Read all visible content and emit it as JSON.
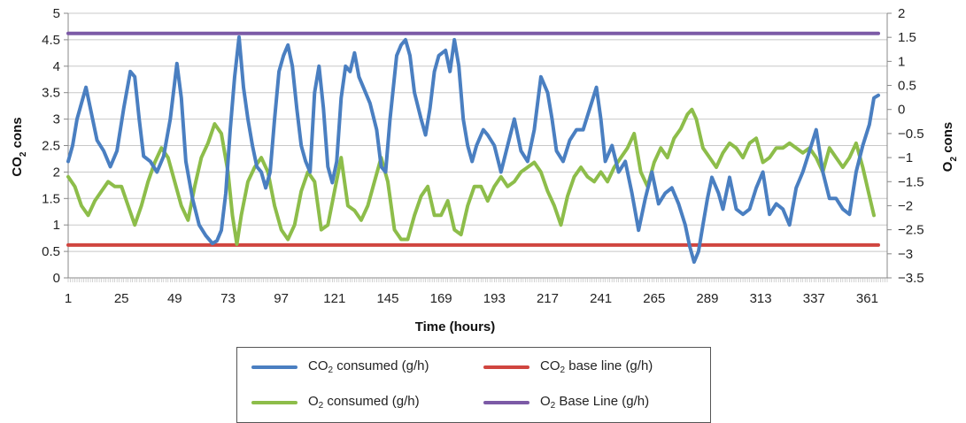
{
  "chart_data": {
    "type": "line",
    "xlabel": "Time (hours)",
    "ylabel_left": "CO2 cons",
    "ylabel_right": "O2 cons",
    "x_range": [
      1,
      370
    ],
    "x_ticks": [
      1,
      25,
      49,
      73,
      97,
      121,
      145,
      169,
      193,
      217,
      241,
      265,
      289,
      313,
      337,
      361
    ],
    "ylim_left": [
      0,
      5
    ],
    "y_ticks_left": [
      0,
      0.5,
      1,
      1.5,
      2,
      2.5,
      3,
      3.5,
      4,
      4.5,
      5
    ],
    "y_tick_labels_left": [
      "0",
      "0.5",
      "1",
      "1.5",
      "2",
      "2.5",
      "3",
      "3.5",
      "4",
      "4.5",
      "5"
    ],
    "ylim_right": [
      -3.5,
      2
    ],
    "y_ticks_right": [
      -3.5,
      -3,
      -2.5,
      -2,
      -1.5,
      -1,
      -0.5,
      0,
      0.5,
      1,
      1.5,
      2
    ],
    "y_tick_labels_right": [
      "−3.5",
      "−3",
      "−2.5",
      "−2",
      "−1.5",
      "−1",
      "−0.5",
      "0",
      "0.5",
      "1",
      "1.5",
      "2"
    ],
    "grid": true,
    "legend_position": "bottom",
    "series": [
      {
        "name": "CO2 consumed (g/h)",
        "label_main": "CO",
        "label_sub": "2",
        "label_rest": " consumed (g/h)",
        "axis": "left",
        "color": "#4a7fc1",
        "points": [
          [
            1,
            2.2
          ],
          [
            3,
            2.5
          ],
          [
            5,
            3.0
          ],
          [
            7,
            3.3
          ],
          [
            9,
            3.6
          ],
          [
            11,
            3.2
          ],
          [
            14,
            2.6
          ],
          [
            17,
            2.4
          ],
          [
            20,
            2.1
          ],
          [
            23,
            2.4
          ],
          [
            26,
            3.2
          ],
          [
            29,
            3.9
          ],
          [
            31,
            3.8
          ],
          [
            33,
            3.0
          ],
          [
            35,
            2.3
          ],
          [
            38,
            2.2
          ],
          [
            41,
            2.0
          ],
          [
            44,
            2.3
          ],
          [
            47,
            3.0
          ],
          [
            50,
            4.05
          ],
          [
            52,
            3.4
          ],
          [
            54,
            2.2
          ],
          [
            57,
            1.5
          ],
          [
            60,
            1.0
          ],
          [
            63,
            0.8
          ],
          [
            66,
            0.65
          ],
          [
            68,
            0.7
          ],
          [
            70,
            0.9
          ],
          [
            72,
            1.6
          ],
          [
            74,
            2.8
          ],
          [
            76,
            3.8
          ],
          [
            78,
            4.55
          ],
          [
            80,
            3.6
          ],
          [
            82,
            3.0
          ],
          [
            84,
            2.5
          ],
          [
            86,
            2.1
          ],
          [
            88,
            2.0
          ],
          [
            90,
            1.7
          ],
          [
            92,
            2.0
          ],
          [
            94,
            3.0
          ],
          [
            96,
            3.9
          ],
          [
            98,
            4.2
          ],
          [
            100,
            4.4
          ],
          [
            102,
            4.0
          ],
          [
            104,
            3.2
          ],
          [
            106,
            2.5
          ],
          [
            108,
            2.2
          ],
          [
            110,
            2.0
          ],
          [
            112,
            3.5
          ],
          [
            114,
            4.0
          ],
          [
            116,
            3.2
          ],
          [
            118,
            2.1
          ],
          [
            120,
            1.8
          ],
          [
            122,
            2.2
          ],
          [
            124,
            3.4
          ],
          [
            126,
            4.0
          ],
          [
            128,
            3.9
          ],
          [
            130,
            4.25
          ],
          [
            132,
            3.8
          ],
          [
            134,
            3.6
          ],
          [
            137,
            3.3
          ],
          [
            140,
            2.8
          ],
          [
            142,
            2.1
          ],
          [
            144,
            2.0
          ],
          [
            146,
            3.0
          ],
          [
            149,
            4.2
          ],
          [
            151,
            4.4
          ],
          [
            153,
            4.5
          ],
          [
            155,
            4.2
          ],
          [
            157,
            3.5
          ],
          [
            160,
            3.0
          ],
          [
            162,
            2.7
          ],
          [
            164,
            3.2
          ],
          [
            166,
            3.9
          ],
          [
            168,
            4.2
          ],
          [
            171,
            4.3
          ],
          [
            173,
            3.9
          ],
          [
            175,
            4.5
          ],
          [
            177,
            4.0
          ],
          [
            179,
            3.0
          ],
          [
            181,
            2.5
          ],
          [
            183,
            2.2
          ],
          [
            185,
            2.5
          ],
          [
            188,
            2.8
          ],
          [
            190,
            2.7
          ],
          [
            193,
            2.5
          ],
          [
            196,
            2.0
          ],
          [
            199,
            2.5
          ],
          [
            202,
            3.0
          ],
          [
            205,
            2.4
          ],
          [
            208,
            2.2
          ],
          [
            211,
            2.8
          ],
          [
            214,
            3.8
          ],
          [
            217,
            3.5
          ],
          [
            219,
            3.0
          ],
          [
            221,
            2.4
          ],
          [
            224,
            2.2
          ],
          [
            227,
            2.6
          ],
          [
            230,
            2.8
          ],
          [
            233,
            2.8
          ],
          [
            236,
            3.2
          ],
          [
            239,
            3.6
          ],
          [
            241,
            3.0
          ],
          [
            243,
            2.2
          ],
          [
            246,
            2.5
          ],
          [
            249,
            2.0
          ],
          [
            252,
            2.2
          ],
          [
            255,
            1.6
          ],
          [
            258,
            0.9
          ],
          [
            261,
            1.5
          ],
          [
            264,
            2.0
          ],
          [
            267,
            1.4
          ],
          [
            270,
            1.6
          ],
          [
            273,
            1.7
          ],
          [
            276,
            1.4
          ],
          [
            279,
            1.0
          ],
          [
            281,
            0.6
          ],
          [
            283,
            0.3
          ],
          [
            285,
            0.5
          ],
          [
            287,
            1.0
          ],
          [
            289,
            1.5
          ],
          [
            291,
            1.9
          ],
          [
            294,
            1.6
          ],
          [
            296,
            1.3
          ],
          [
            299,
            1.9
          ],
          [
            302,
            1.3
          ],
          [
            305,
            1.2
          ],
          [
            308,
            1.3
          ],
          [
            311,
            1.7
          ],
          [
            314,
            2.0
          ],
          [
            317,
            1.2
          ],
          [
            320,
            1.4
          ],
          [
            323,
            1.3
          ],
          [
            326,
            1.0
          ],
          [
            329,
            1.7
          ],
          [
            332,
            2.0
          ],
          [
            335,
            2.4
          ],
          [
            338,
            2.8
          ],
          [
            341,
            2.0
          ],
          [
            344,
            1.5
          ],
          [
            347,
            1.5
          ],
          [
            350,
            1.3
          ],
          [
            353,
            1.2
          ],
          [
            356,
            2.0
          ],
          [
            359,
            2.5
          ],
          [
            362,
            2.9
          ],
          [
            364,
            3.4
          ],
          [
            366,
            3.45
          ]
        ]
      },
      {
        "name": "O2 consumed (g/h)",
        "label_main": "O",
        "label_sub": "2",
        "label_rest": " consumed (g/h)",
        "axis": "right",
        "color": "#8dbd4a",
        "points": [
          [
            1,
            -1.4
          ],
          [
            4,
            -1.6
          ],
          [
            7,
            -2.0
          ],
          [
            10,
            -2.2
          ],
          [
            13,
            -1.9
          ],
          [
            16,
            -1.7
          ],
          [
            19,
            -1.5
          ],
          [
            22,
            -1.6
          ],
          [
            25,
            -1.6
          ],
          [
            28,
            -2.0
          ],
          [
            31,
            -2.4
          ],
          [
            34,
            -2.0
          ],
          [
            37,
            -1.5
          ],
          [
            40,
            -1.1
          ],
          [
            43,
            -0.8
          ],
          [
            46,
            -1.0
          ],
          [
            49,
            -1.5
          ],
          [
            52,
            -2.0
          ],
          [
            55,
            -2.3
          ],
          [
            58,
            -1.6
          ],
          [
            61,
            -1.0
          ],
          [
            64,
            -0.7
          ],
          [
            67,
            -0.3
          ],
          [
            70,
            -0.5
          ],
          [
            73,
            -1.3
          ],
          [
            75,
            -2.2
          ],
          [
            77,
            -2.8
          ],
          [
            79,
            -2.2
          ],
          [
            82,
            -1.5
          ],
          [
            85,
            -1.2
          ],
          [
            88,
            -1.0
          ],
          [
            91,
            -1.3
          ],
          [
            94,
            -2.0
          ],
          [
            97,
            -2.5
          ],
          [
            100,
            -2.7
          ],
          [
            103,
            -2.4
          ],
          [
            106,
            -1.7
          ],
          [
            109,
            -1.3
          ],
          [
            112,
            -1.5
          ],
          [
            115,
            -2.5
          ],
          [
            118,
            -2.4
          ],
          [
            121,
            -1.7
          ],
          [
            124,
            -1.0
          ],
          [
            127,
            -2.0
          ],
          [
            130,
            -2.1
          ],
          [
            133,
            -2.3
          ],
          [
            136,
            -2.0
          ],
          [
            139,
            -1.5
          ],
          [
            142,
            -1.0
          ],
          [
            145,
            -1.5
          ],
          [
            148,
            -2.5
          ],
          [
            151,
            -2.7
          ],
          [
            154,
            -2.7
          ],
          [
            157,
            -2.2
          ],
          [
            160,
            -1.8
          ],
          [
            163,
            -1.6
          ],
          [
            166,
            -2.2
          ],
          [
            169,
            -2.2
          ],
          [
            172,
            -1.9
          ],
          [
            175,
            -2.5
          ],
          [
            178,
            -2.6
          ],
          [
            181,
            -2.0
          ],
          [
            184,
            -1.6
          ],
          [
            187,
            -1.6
          ],
          [
            190,
            -1.9
          ],
          [
            193,
            -1.6
          ],
          [
            196,
            -1.4
          ],
          [
            199,
            -1.6
          ],
          [
            202,
            -1.5
          ],
          [
            205,
            -1.3
          ],
          [
            208,
            -1.2
          ],
          [
            211,
            -1.1
          ],
          [
            214,
            -1.3
          ],
          [
            217,
            -1.7
          ],
          [
            220,
            -2.0
          ],
          [
            223,
            -2.4
          ],
          [
            226,
            -1.8
          ],
          [
            229,
            -1.4
          ],
          [
            232,
            -1.2
          ],
          [
            235,
            -1.4
          ],
          [
            238,
            -1.5
          ],
          [
            241,
            -1.3
          ],
          [
            244,
            -1.5
          ],
          [
            247,
            -1.2
          ],
          [
            250,
            -1.0
          ],
          [
            253,
            -0.8
          ],
          [
            256,
            -0.5
          ],
          [
            259,
            -1.3
          ],
          [
            262,
            -1.6
          ],
          [
            265,
            -1.1
          ],
          [
            268,
            -0.8
          ],
          [
            271,
            -1.0
          ],
          [
            274,
            -0.6
          ],
          [
            277,
            -0.4
          ],
          [
            280,
            -0.1
          ],
          [
            282,
            0.0
          ],
          [
            284,
            -0.2
          ],
          [
            287,
            -0.8
          ],
          [
            290,
            -1.0
          ],
          [
            293,
            -1.2
          ],
          [
            296,
            -0.9
          ],
          [
            299,
            -0.7
          ],
          [
            302,
            -0.8
          ],
          [
            305,
            -1.0
          ],
          [
            308,
            -0.7
          ],
          [
            311,
            -0.6
          ],
          [
            314,
            -1.1
          ],
          [
            317,
            -1.0
          ],
          [
            320,
            -0.8
          ],
          [
            323,
            -0.8
          ],
          [
            326,
            -0.7
          ],
          [
            329,
            -0.8
          ],
          [
            332,
            -0.9
          ],
          [
            335,
            -0.8
          ],
          [
            338,
            -1.0
          ],
          [
            341,
            -1.3
          ],
          [
            344,
            -0.8
          ],
          [
            347,
            -1.0
          ],
          [
            350,
            -1.2
          ],
          [
            353,
            -1.0
          ],
          [
            356,
            -0.7
          ],
          [
            359,
            -1.2
          ],
          [
            362,
            -1.8
          ],
          [
            364,
            -2.2
          ]
        ]
      },
      {
        "name": "CO2 base line (g/h)",
        "label_main": "CO",
        "label_sub": "2",
        "label_rest": " base line (g/h)",
        "axis": "left",
        "color": "#d0453f",
        "points": [
          [
            1,
            0.62
          ],
          [
            366,
            0.62
          ]
        ]
      },
      {
        "name": "O2 Base Line (g/h)",
        "label_main": "O",
        "label_sub": "2",
        "label_rest": " Base Line (g/h)",
        "axis": "right",
        "color": "#7c5aa6",
        "points": [
          [
            1,
            1.58
          ],
          [
            366,
            1.58
          ]
        ]
      }
    ]
  }
}
